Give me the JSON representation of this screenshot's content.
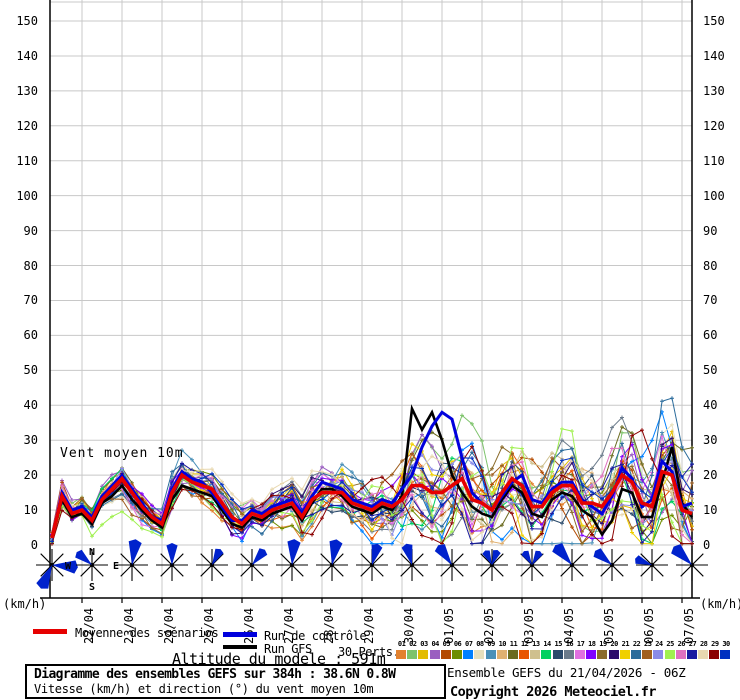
{
  "plot_label": "Vent moyen 10m",
  "axis": {
    "unit_left": "(km/h)",
    "unit_right": "(km/h)",
    "yticks": [
      0,
      10,
      20,
      30,
      40,
      50,
      60,
      70,
      80,
      90,
      100,
      110,
      120,
      130,
      140,
      150
    ]
  },
  "legend": {
    "mean": "Moyenne des scénarios",
    "control": "Run de contrôle",
    "gfs": "Run GFS",
    "perts": "30 Perts.",
    "altitude": "Altitude du modele : 591m"
  },
  "title_box": {
    "line1": "Diagramme des ensembles GEFS sur 384h : 38.6N 0.8W",
    "line2": "Vitesse (km/h) et direction (°) du vent moyen 10m"
  },
  "source": {
    "line1": "Ensemble GEFS du 21/04/2026 - 06Z",
    "line2": "Copyright 2026 Meteociel.fr"
  },
  "colors": {
    "grid": "#c8c8c8",
    "axis": "#000000",
    "mean": "#e60000",
    "control": "#0000dd",
    "gfs": "#000000",
    "rose": "#0022cc",
    "background": "#ffffff"
  },
  "members": [
    {
      "num": "01",
      "color": "#e2812e"
    },
    {
      "num": "02",
      "color": "#7dc36b"
    },
    {
      "num": "03",
      "color": "#e3bc00"
    },
    {
      "num": "04",
      "color": "#9a5fc0"
    },
    {
      "num": "05",
      "color": "#b34a00"
    },
    {
      "num": "06",
      "color": "#6f8e00"
    },
    {
      "num": "07",
      "color": "#0080ff"
    },
    {
      "num": "08",
      "color": "#e7e0bd"
    },
    {
      "num": "09",
      "color": "#4a90b8"
    },
    {
      "num": "10",
      "color": "#e0b070"
    },
    {
      "num": "11",
      "color": "#6b6b20"
    },
    {
      "num": "12",
      "color": "#e85500"
    },
    {
      "num": "13",
      "color": "#cfc08e"
    },
    {
      "num": "14",
      "color": "#00d060"
    },
    {
      "num": "15",
      "color": "#2a4a6b"
    },
    {
      "num": "16",
      "color": "#6b7b8b"
    },
    {
      "num": "17",
      "color": "#e070e0"
    },
    {
      "num": "18",
      "color": "#8000ff"
    },
    {
      "num": "19",
      "color": "#8b6b2a"
    },
    {
      "num": "20",
      "color": "#2a0a6b"
    },
    {
      "num": "21",
      "color": "#f0d000"
    },
    {
      "num": "22",
      "color": "#2a6b9b"
    },
    {
      "num": "23",
      "color": "#a06020"
    },
    {
      "num": "24",
      "color": "#8b8be8"
    },
    {
      "num": "25",
      "color": "#a0f050"
    },
    {
      "num": "26",
      "color": "#e070c0"
    },
    {
      "num": "27",
      "color": "#1a1aa0"
    },
    {
      "num": "28",
      "color": "#e8d8b0"
    },
    {
      "num": "29",
      "color": "#8b0000"
    },
    {
      "num": "30",
      "color": "#0030c0"
    }
  ],
  "chart_data": {
    "type": "line",
    "title": "Vent moyen 10m",
    "ylabel": "(km/h)",
    "ylim": [
      0,
      155
    ],
    "yticks": [
      0,
      10,
      20,
      30,
      40,
      50,
      60,
      70,
      80,
      90,
      100,
      110,
      120,
      130,
      140,
      150
    ],
    "x_start": "21/04 06Z",
    "x_step_hours": 6,
    "n_points": 65,
    "x_dates": [
      "22/04",
      "23/04",
      "24/04",
      "25/04",
      "26/04",
      "27/04",
      "28/04",
      "29/04",
      "30/04",
      "01/05",
      "02/05",
      "03/05",
      "04/05",
      "05/05",
      "06/05",
      "07/05"
    ],
    "series": [
      {
        "name": "Moyenne des scénarios",
        "color": "#e60000",
        "values": [
          2,
          14,
          9,
          10,
          7,
          13,
          16,
          19,
          15,
          11,
          8,
          6,
          15,
          20,
          18,
          17,
          16,
          12,
          8,
          6,
          9,
          8,
          10,
          11,
          12,
          8,
          13,
          15,
          15,
          15,
          12,
          11,
          10,
          12,
          11,
          13,
          17,
          17,
          15,
          15,
          17,
          19,
          13,
          12,
          10,
          15,
          19,
          17,
          11,
          11,
          15,
          17,
          17,
          12,
          12,
          11,
          15,
          20,
          18,
          12,
          11,
          21,
          20,
          10,
          9
        ]
      },
      {
        "name": "Run de contrôle",
        "color": "#0000dd",
        "values": [
          2,
          15,
          10,
          11,
          8,
          14,
          17,
          20,
          16,
          12,
          8,
          7,
          16,
          21,
          19,
          18,
          15,
          11,
          7,
          7,
          10,
          9,
          11,
          12,
          13,
          9,
          14,
          18,
          17,
          16,
          13,
          12,
          11,
          13,
          12,
          16,
          20,
          28,
          34,
          38,
          36,
          25,
          15,
          12,
          10,
          14,
          18,
          20,
          13,
          12,
          16,
          18,
          18,
          13,
          11,
          9,
          14,
          22,
          19,
          11,
          13,
          24,
          21,
          11,
          12
        ]
      },
      {
        "name": "Run GFS",
        "color": "#000000",
        "values": [
          2,
          13,
          8,
          9,
          6,
          12,
          14,
          17,
          13,
          10,
          7,
          5,
          13,
          17,
          16,
          15,
          14,
          10,
          6,
          5,
          8,
          7,
          9,
          10,
          11,
          7,
          12,
          16,
          16,
          14,
          11,
          10,
          9,
          11,
          10,
          14,
          39,
          33,
          38,
          30,
          20,
          15,
          11,
          9,
          8,
          13,
          17,
          15,
          9,
          8,
          13,
          15,
          14,
          10,
          8,
          3,
          7,
          16,
          15,
          8,
          8,
          18,
          28,
          12,
          8
        ]
      }
    ],
    "member_spread": [
      1,
      3,
      3,
      3,
      3,
      3,
      3,
      4,
      4,
      4,
      3,
      3,
      4,
      4,
      4,
      4,
      4,
      4,
      4,
      4,
      4,
      4,
      5,
      5,
      5,
      5,
      6,
      6,
      6,
      6,
      6,
      6,
      7,
      7,
      8,
      9,
      10,
      11,
      11,
      12,
      12,
      12,
      12,
      11,
      10,
      10,
      11,
      11,
      11,
      10,
      10,
      11,
      11,
      11,
      11,
      11,
      12,
      12,
      12,
      12,
      12,
      13,
      13,
      12,
      11
    ],
    "compass": [
      "N",
      "E",
      "S",
      "W"
    ],
    "wind_roses": [
      {
        "dirs": [
          95,
          205
        ],
        "len": 26
      },
      {
        "dirs": [
          -50
        ],
        "len": 20,
        "compass": true
      },
      {
        "dirs": [
          8
        ],
        "len": 26
      },
      {
        "dirs": [
          0
        ],
        "len": 22
      },
      {
        "dirs": [
          28
        ],
        "len": 18
      },
      {
        "dirs": [
          40
        ],
        "len": 20
      },
      {
        "dirs": [
          5
        ],
        "len": 26
      },
      {
        "dirs": [
          10
        ],
        "len": 26
      },
      {
        "dirs": [
          15
        ],
        "len": 22
      },
      {
        "dirs": [
          -15
        ],
        "len": 22
      },
      {
        "dirs": [
          -35
        ],
        "len": 24
      },
      {
        "dirs": [
          -25,
          20
        ],
        "len": 16
      },
      {
        "dirs": [
          -30,
          30
        ],
        "len": 16
      },
      {
        "dirs": [
          -40
        ],
        "len": 26
      },
      {
        "dirs": [
          -50
        ],
        "len": 22
      },
      {
        "dirs": [
          -70
        ],
        "len": 18
      },
      {
        "dirs": [
          -45
        ],
        "len": 26
      }
    ]
  }
}
